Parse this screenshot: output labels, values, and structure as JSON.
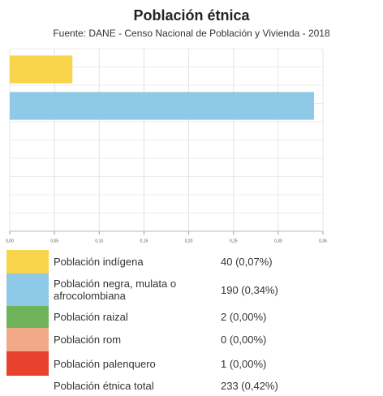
{
  "chart_data": {
    "type": "bar",
    "orientation": "horizontal",
    "title": "Población étnica",
    "subtitle": "Fuente: DANE - Censo Nacional de Población y Vivienda - 2018",
    "categories": [
      "Población indígena",
      "Población negra, mulata o afrocolombiana",
      "Población raizal",
      "Población rom",
      "Población palenquero"
    ],
    "values": [
      0.07,
      0.34,
      0,
      0,
      0
    ],
    "value_labels": [
      "40 (0,07%)",
      "190 (0,34%)",
      "2 (0,00%)",
      "0 (0,00%)",
      "1 (0,00%)"
    ],
    "colors": [
      "#f7d44a",
      "#8ec9e8",
      "#6fb35a",
      "#f2a98a",
      "#e8412e"
    ],
    "xlim": [
      0,
      0.35
    ],
    "xticks": [
      {
        "value": 0,
        "label": "0,00"
      },
      {
        "value": 0.05,
        "label": "0,05"
      },
      {
        "value": 0.1,
        "label": "0,10"
      },
      {
        "value": 0.15,
        "label": "0,15"
      },
      {
        "value": 0.2,
        "label": "0,20"
      },
      {
        "value": 0.25,
        "label": "0,25"
      },
      {
        "value": 0.3,
        "label": "0,30"
      },
      {
        "value": 0.35,
        "label": "0,35"
      }
    ],
    "grid": true,
    "total": {
      "label": "Población étnica total",
      "value_label": "233 (0,42%)"
    }
  }
}
